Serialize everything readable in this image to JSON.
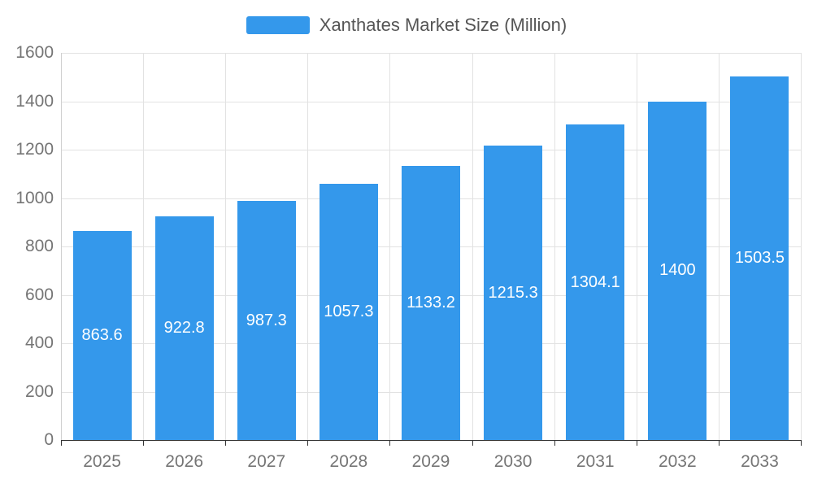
{
  "legend": {
    "label": "Xanthates Market Size (Million)",
    "swatch_color": "#3498EB"
  },
  "chart_data": {
    "type": "bar",
    "title": "Xanthates Market Size (Million)",
    "categories": [
      "2025",
      "2026",
      "2027",
      "2028",
      "2029",
      "2030",
      "2031",
      "2032",
      "2033"
    ],
    "values": [
      863.6,
      922.8,
      987.3,
      1057.3,
      1133.2,
      1215.3,
      1304.1,
      1400,
      1503.5
    ],
    "value_labels": [
      "863.6",
      "922.8",
      "987.3",
      "1057.3",
      "1133.2",
      "1215.3",
      "1304.1",
      "1400",
      "1503.5"
    ],
    "xlabel": "",
    "ylabel": "",
    "ylim": [
      0,
      1600
    ],
    "yticks": [
      0,
      200,
      400,
      600,
      800,
      1000,
      1200,
      1400,
      1600
    ],
    "grid": true,
    "legend_position": "top",
    "bar_color": "#3498EB",
    "value_label_color": "#ffffff",
    "axis_tick_label_color": "#757575"
  }
}
